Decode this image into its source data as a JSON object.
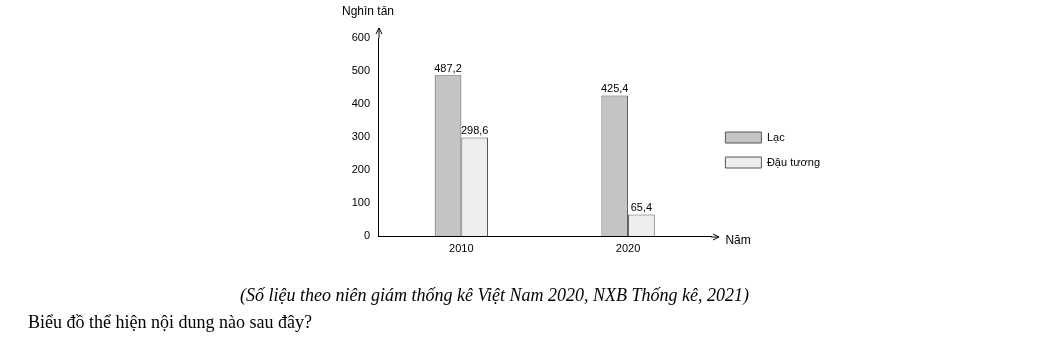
{
  "chart_data": {
    "type": "bar",
    "categories": [
      "2010",
      "2020"
    ],
    "series": [
      {
        "name": "Lạc",
        "color": "#c4c4c4",
        "values": [
          487.2,
          425.4
        ],
        "value_labels": [
          "487,2",
          "425,4"
        ]
      },
      {
        "name": "Đậu tương",
        "color": "#eeeeee",
        "values": [
          298.6,
          65.4
        ],
        "value_labels": [
          "298,6",
          "65,4"
        ]
      }
    ],
    "ylabel": "Nghìn tấn",
    "xlabel": "Năm",
    "ylim": [
      0,
      600
    ],
    "yticks": [
      0,
      100,
      200,
      300,
      400,
      500,
      600
    ],
    "grid": false,
    "legend": "right",
    "annotations": [
      "(Số liệu theo niên giám thống kê Việt Nam 2020, NXB Thống kê, 2021)",
      "Biểu đồ thể hiện nội dung nào sau đây?"
    ]
  }
}
